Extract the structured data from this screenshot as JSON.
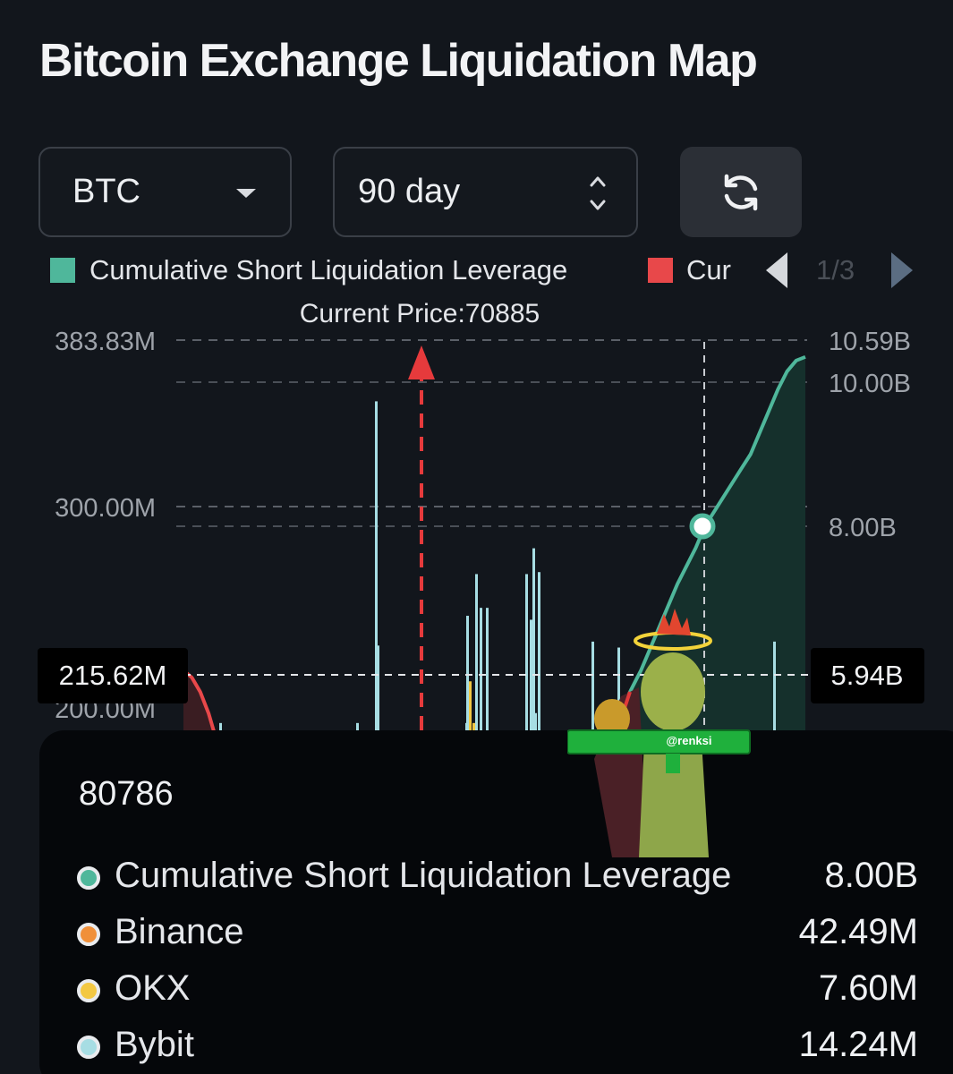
{
  "page": {
    "title": "Bitcoin Exchange Liquidation Map"
  },
  "controls": {
    "symbol": "BTC",
    "period": "90 day",
    "refresh_icon": "refresh-icon"
  },
  "legend": {
    "items": [
      {
        "label": "Cumulative Short Liquidation Leverage",
        "color": "#4fb79b"
      },
      {
        "label": "Cur",
        "color": "#e8484a"
      }
    ],
    "page": "1/3"
  },
  "chart_data": {
    "type": "bar",
    "current_price_label": "Current Price:70885",
    "y_left_ticks": [
      "383.83M",
      "300.00M",
      "200.00M"
    ],
    "y_right_ticks": [
      "10.59B",
      "10.00B",
      "8.00B"
    ],
    "crosshair": {
      "left_value": "215.62M",
      "right_value": "5.94B"
    },
    "bars_left_m": [
      175,
      191,
      353,
      230,
      191,
      183,
      182,
      183,
      191,
      212,
      245,
      266,
      249,
      191,
      249,
      266,
      243,
      279,
      267,
      196,
      182,
      232,
      183,
      196,
      195,
      229,
      232
    ],
    "cumulative_short_b": [
      4.7,
      4.9,
      5.1,
      5.3,
      5.5,
      5.75,
      6.0,
      6.3,
      6.6,
      6.9,
      7.2,
      7.45,
      7.7,
      8.0,
      8.2,
      8.4,
      8.6,
      8.8,
      9.0,
      9.3,
      9.6,
      9.9,
      10.15,
      10.3,
      10.35
    ],
    "cumulative_long_visible_b": [
      6.0,
      5.9,
      5.7,
      5.4,
      5.0,
      4.6
    ]
  },
  "tooltip": {
    "price": "80786",
    "rows": [
      {
        "name": "Cumulative Short Liquidation Leverage",
        "value": "8.00B",
        "color": "#4fb79b"
      },
      {
        "name": "Binance",
        "value": "42.49M",
        "color": "#f0903a"
      },
      {
        "name": "OKX",
        "value": "7.60M",
        "color": "#f3c843"
      },
      {
        "name": "Bybit",
        "value": "14.24M",
        "color": "#a7dde3"
      }
    ]
  },
  "sticker": {
    "handle": "@renksi"
  }
}
